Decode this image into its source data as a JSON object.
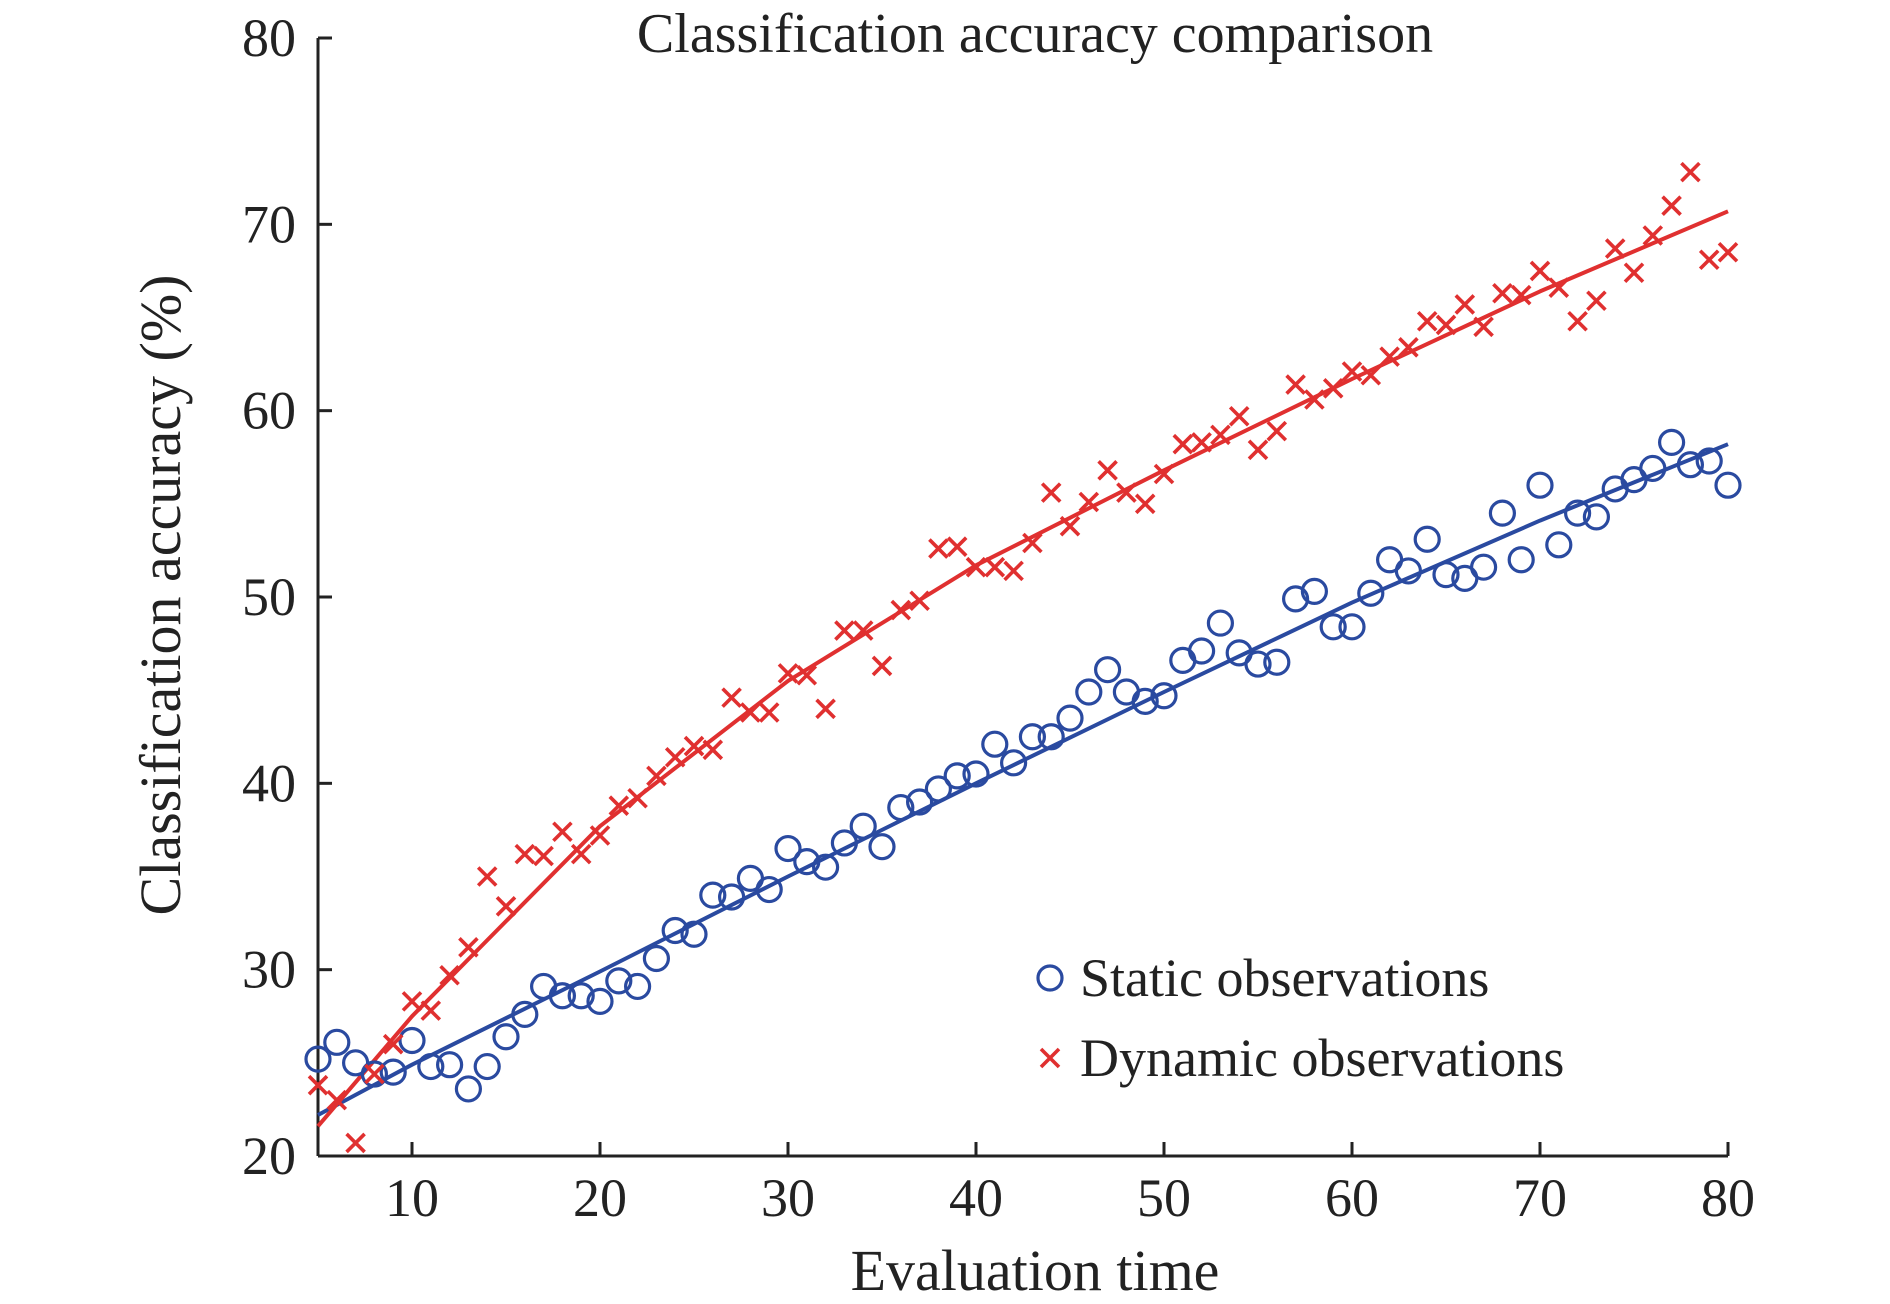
{
  "chart_data": {
    "type": "scatter",
    "title": "Classification accuracy comparison",
    "xlabel": "Evaluation time",
    "ylabel": "Classification accuracy (%)",
    "xlim": [
      5,
      80
    ],
    "ylim": [
      20,
      80
    ],
    "xticks": [
      10,
      20,
      30,
      40,
      50,
      60,
      70,
      80
    ],
    "yticks": [
      20,
      30,
      40,
      50,
      60,
      70,
      80
    ],
    "legend_position": "bottom-right",
    "grid": false,
    "series": [
      {
        "name": "Static observations",
        "marker": "circle",
        "color": "#2a4aa0",
        "x": [
          5,
          6,
          7,
          8,
          9,
          10,
          11,
          12,
          13,
          14,
          15,
          16,
          17,
          18,
          19,
          20,
          21,
          22,
          23,
          24,
          25,
          26,
          27,
          28,
          29,
          30,
          31,
          32,
          33,
          34,
          35,
          36,
          37,
          38,
          39,
          40,
          41,
          42,
          43,
          44,
          45,
          46,
          47,
          48,
          49,
          50,
          51,
          52,
          53,
          54,
          55,
          56,
          57,
          58,
          59,
          60,
          61,
          62,
          63,
          64,
          65,
          66,
          67,
          68,
          69,
          70,
          71,
          72,
          73,
          74,
          75,
          76,
          77,
          78,
          79,
          80
        ],
        "y": [
          25.2,
          26.1,
          25.0,
          24.4,
          24.5,
          26.2,
          24.8,
          24.9,
          23.6,
          24.8,
          26.4,
          27.6,
          29.1,
          28.6,
          28.6,
          28.3,
          29.4,
          29.1,
          30.6,
          32.1,
          31.9,
          34.0,
          33.9,
          34.9,
          34.3,
          36.5,
          35.8,
          35.5,
          36.8,
          37.7,
          36.6,
          38.7,
          39.0,
          39.7,
          40.4,
          40.5,
          42.1,
          41.1,
          42.5,
          42.5,
          43.5,
          44.9,
          46.1,
          44.9,
          44.4,
          44.7,
          46.6,
          47.1,
          48.6,
          47.0,
          46.4,
          46.5,
          49.9,
          50.3,
          48.4,
          48.4,
          50.2,
          52.0,
          51.4,
          53.1,
          51.2,
          51.0,
          51.6,
          54.5,
          52.0,
          56.0,
          52.8,
          54.5,
          54.3,
          55.8,
          56.3,
          56.9,
          58.3,
          57.1,
          57.3,
          56.0
        ]
      },
      {
        "name": "Dynamic observations",
        "marker": "cross",
        "color": "#e03030",
        "x": [
          5,
          6,
          7,
          8,
          9,
          10,
          11,
          12,
          13,
          14,
          15,
          16,
          17,
          18,
          19,
          20,
          21,
          22,
          23,
          24,
          25,
          26,
          27,
          28,
          29,
          30,
          31,
          32,
          33,
          34,
          35,
          36,
          37,
          38,
          39,
          40,
          41,
          42,
          43,
          44,
          45,
          46,
          47,
          48,
          49,
          50,
          51,
          52,
          53,
          54,
          55,
          56,
          57,
          58,
          59,
          60,
          61,
          62,
          63,
          64,
          65,
          66,
          67,
          68,
          69,
          70,
          71,
          72,
          73,
          74,
          75,
          76,
          77,
          78,
          79,
          80
        ],
        "y": [
          23.8,
          23.0,
          20.7,
          24.4,
          26.0,
          28.3,
          27.8,
          29.7,
          31.2,
          35.0,
          33.4,
          36.2,
          36.1,
          37.4,
          36.2,
          37.2,
          38.8,
          39.2,
          40.4,
          41.4,
          42.0,
          41.8,
          44.6,
          43.8,
          43.8,
          45.9,
          45.8,
          44.0,
          48.2,
          48.2,
          46.3,
          49.3,
          49.8,
          52.6,
          52.7,
          51.6,
          51.6,
          51.4,
          52.9,
          55.6,
          53.8,
          55.1,
          56.8,
          55.6,
          55.0,
          56.6,
          58.2,
          58.3,
          58.7,
          59.7,
          57.9,
          58.9,
          61.4,
          60.6,
          61.2,
          62.1,
          61.9,
          62.9,
          63.4,
          64.8,
          64.6,
          65.7,
          64.5,
          66.3,
          66.2,
          67.5,
          66.6,
          64.8,
          65.9,
          68.7,
          67.4,
          69.4,
          71.0,
          72.8,
          68.1,
          68.5
        ]
      }
    ],
    "fit_lines": [
      {
        "series": "Static observations",
        "color": "#2a4aa0",
        "x": [
          5,
          10,
          20,
          30,
          40,
          50,
          60,
          70,
          80
        ],
        "y": [
          22.2,
          24.9,
          29.9,
          35.0,
          40.0,
          44.9,
          49.7,
          54.1,
          58.2
        ]
      },
      {
        "series": "Dynamic observations",
        "color": "#e03030",
        "x": [
          5,
          10,
          20,
          30,
          40,
          50,
          60,
          70,
          80
        ],
        "y": [
          21.6,
          27.5,
          37.7,
          45.5,
          51.7,
          56.8,
          61.7,
          66.4,
          70.7
        ]
      }
    ]
  }
}
